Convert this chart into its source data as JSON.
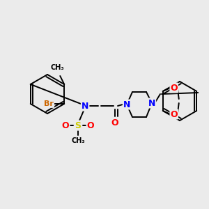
{
  "bg_color": "#ebebeb",
  "atom_colors": {
    "C": "#000000",
    "N": "#0000ff",
    "O": "#ff0000",
    "S": "#cccc00",
    "Br": "#cc6600",
    "H": "#000000"
  },
  "bond_color": "#000000",
  "figsize": [
    3.0,
    3.0
  ],
  "dpi": 100
}
